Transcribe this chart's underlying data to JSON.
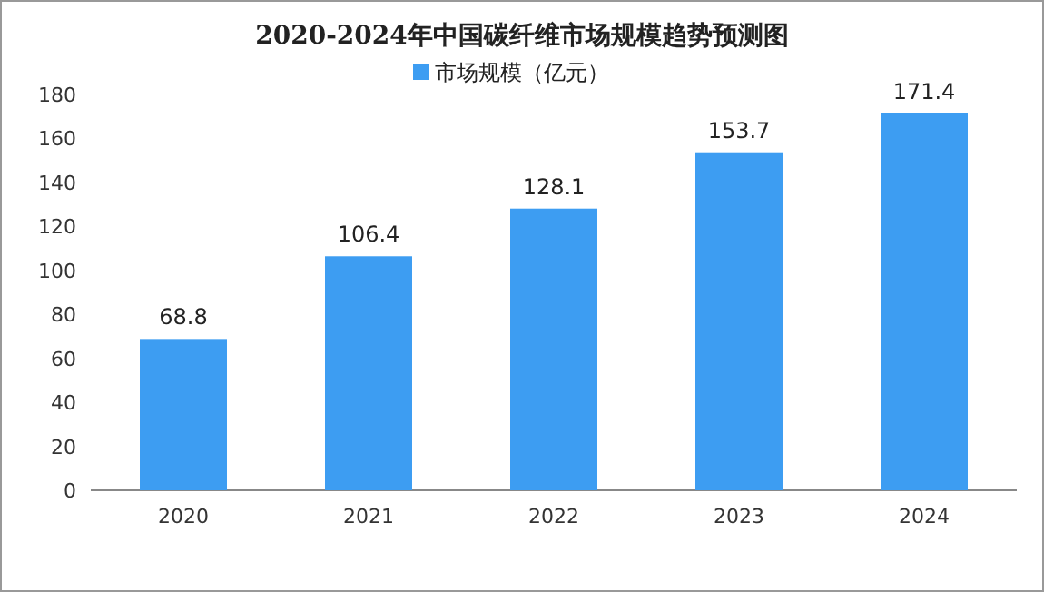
{
  "chart_data": {
    "type": "bar",
    "title": "2020-2024年中国碳纤维市场规模趋势预测图",
    "categories": [
      "2020",
      "2021",
      "2022",
      "2023",
      "2024"
    ],
    "series": [
      {
        "name": "市场规模（亿元）",
        "color": "#3d9df2",
        "values": [
          68.8,
          106.4,
          128.1,
          153.7,
          171.4
        ]
      }
    ],
    "ylim": [
      0,
      180
    ],
    "yticks": [
      0,
      20,
      40,
      60,
      80,
      100,
      120,
      140,
      160,
      180
    ],
    "data_labels": true,
    "legend": "top",
    "grid": false
  }
}
